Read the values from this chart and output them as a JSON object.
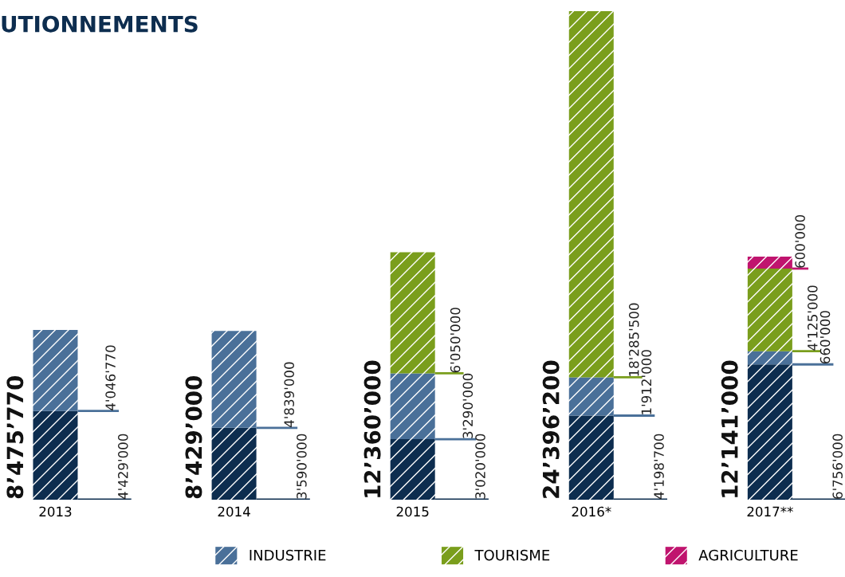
{
  "chart_data": {
    "type": "bar",
    "title": "UTIONNEMENTS",
    "stacked": true,
    "legend": "bottom",
    "grid": false,
    "categories": [
      "2013",
      "2014",
      "2015",
      "2016*",
      "2017**"
    ],
    "series": [
      {
        "color": "#0d2d4f",
        "values": [
          4429000,
          3590000,
          3020000,
          4198700,
          6756000
        ],
        "value_labels": [
          "4'429'000",
          "3'590'000",
          "3'020'000",
          "4'198'700",
          "6'756'000"
        ]
      },
      {
        "name": "INDUSTRIE",
        "color": "#4a7099",
        "values": [
          4046770,
          4839000,
          3290000,
          1912000,
          660000
        ],
        "value_labels": [
          "4'046'770",
          "4'839'000",
          "3'290'000",
          "1'912'000",
          "660'000"
        ]
      },
      {
        "name": "TOURISME",
        "color": "#7a9e1c",
        "values": [
          null,
          null,
          6050000,
          18285500,
          4125000
        ],
        "value_labels": [
          null,
          null,
          "6'050'000",
          "18'285'500",
          "4'125'000"
        ]
      },
      {
        "name": "AGRICULTURE",
        "color": "#c0146e",
        "values": [
          null,
          null,
          null,
          null,
          600000
        ],
        "value_labels": [
          null,
          null,
          null,
          null,
          "600'000"
        ]
      }
    ],
    "totals": [
      "8’475’770",
      "8’429’000",
      "12’360’000",
      "24’396’200",
      "12’141’000"
    ]
  }
}
